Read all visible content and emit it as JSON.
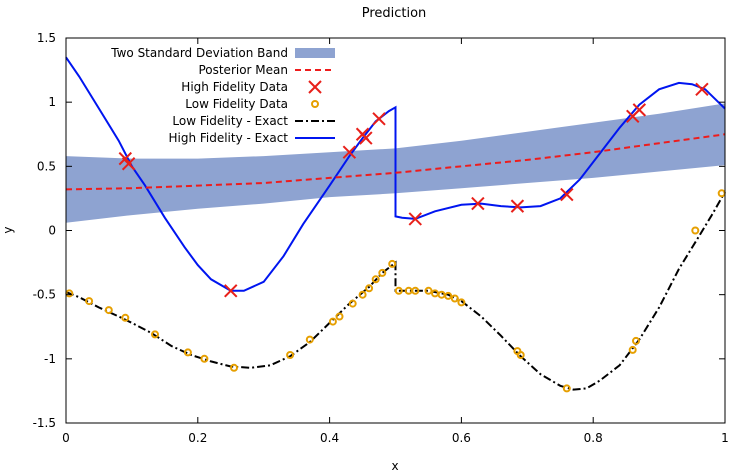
{
  "chart_data": {
    "type": "line",
    "title": "Prediction",
    "xlabel": "x",
    "ylabel": "y",
    "xlim": [
      0,
      1
    ],
    "ylim": [
      -1.5,
      1.5
    ],
    "x_ticks": [
      0,
      0.2,
      0.4,
      0.6,
      0.8,
      1
    ],
    "x_tick_labels": [
      "0",
      "0.2",
      "0.4",
      "0.6",
      "0.8",
      "1"
    ],
    "y_ticks": [
      -1.5,
      -1,
      -0.5,
      0,
      0.5,
      1,
      1.5
    ],
    "y_tick_labels": [
      "-1.5",
      "-1",
      "-0.5",
      "0",
      "0.5",
      "1",
      "1.5"
    ],
    "grid": false,
    "legend_position": "top-left",
    "legend": [
      "Two Standard Deviation Band",
      "Posterior Mean",
      "High Fidelity Data",
      "Low Fidelity Data",
      "Low Fidelity - Exact",
      "High Fidelity - Exact"
    ],
    "colors": {
      "band": "#8ea3d1",
      "mean": "#ee1c1c",
      "high_data": "#e8201a",
      "low_data": "#e69f00",
      "low_exact": "#000000",
      "high_exact": "#0015f0"
    },
    "band": {
      "x": [
        0,
        0.1,
        0.2,
        0.3,
        0.4,
        0.5,
        0.6,
        0.7,
        0.8,
        0.9,
        1
      ],
      "lower": [
        0.06,
        0.12,
        0.17,
        0.21,
        0.26,
        0.29,
        0.33,
        0.37,
        0.41,
        0.46,
        0.51
      ],
      "upper": [
        0.58,
        0.56,
        0.56,
        0.58,
        0.61,
        0.64,
        0.7,
        0.77,
        0.84,
        0.91,
        0.99
      ]
    },
    "posterior_mean": {
      "x": [
        0,
        0.1,
        0.2,
        0.3,
        0.4,
        0.5,
        0.6,
        0.7,
        0.8,
        0.9,
        1
      ],
      "y": [
        0.32,
        0.33,
        0.35,
        0.37,
        0.41,
        0.45,
        0.5,
        0.55,
        0.61,
        0.68,
        0.75
      ]
    },
    "high_fidelity_exact": {
      "x": [
        0,
        0.02,
        0.05,
        0.08,
        0.1,
        0.12,
        0.15,
        0.18,
        0.2,
        0.22,
        0.25,
        0.27,
        0.3,
        0.33,
        0.36,
        0.4,
        0.43,
        0.45,
        0.47,
        0.49,
        0.5,
        0.5,
        0.51,
        0.53,
        0.56,
        0.6,
        0.63,
        0.66,
        0.69,
        0.72,
        0.75,
        0.78,
        0.81,
        0.84,
        0.87,
        0.9,
        0.93,
        0.95,
        0.97,
        0.99,
        1
      ],
      "y": [
        1.35,
        1.2,
        0.95,
        0.7,
        0.5,
        0.35,
        0.1,
        -0.13,
        -0.27,
        -0.38,
        -0.47,
        -0.47,
        -0.4,
        -0.2,
        0.05,
        0.35,
        0.58,
        0.72,
        0.85,
        0.93,
        0.96,
        0.11,
        0.1,
        0.09,
        0.15,
        0.2,
        0.21,
        0.19,
        0.18,
        0.19,
        0.25,
        0.4,
        0.6,
        0.8,
        0.98,
        1.1,
        1.15,
        1.14,
        1.1,
        1.0,
        0.95
      ]
    },
    "low_fidelity_exact": {
      "x": [
        0,
        0.02,
        0.05,
        0.08,
        0.1,
        0.13,
        0.16,
        0.19,
        0.22,
        0.25,
        0.28,
        0.31,
        0.34,
        0.37,
        0.4,
        0.43,
        0.46,
        0.48,
        0.5,
        0.5,
        0.52,
        0.55,
        0.58,
        0.6,
        0.63,
        0.66,
        0.69,
        0.72,
        0.75,
        0.77,
        0.79,
        0.81,
        0.84,
        0.87,
        0.9,
        0.93,
        0.96,
        0.98,
        1
      ],
      "y": [
        -0.48,
        -0.52,
        -0.6,
        -0.67,
        -0.72,
        -0.8,
        -0.9,
        -0.97,
        -1.02,
        -1.06,
        -1.07,
        -1.05,
        -0.98,
        -0.87,
        -0.72,
        -0.57,
        -0.44,
        -0.33,
        -0.25,
        -0.47,
        -0.47,
        -0.47,
        -0.5,
        -0.55,
        -0.67,
        -0.82,
        -0.98,
        -1.12,
        -1.21,
        -1.24,
        -1.23,
        -1.17,
        -1.05,
        -0.85,
        -0.6,
        -0.3,
        -0.05,
        0.12,
        0.3
      ]
    },
    "high_fidelity_data": {
      "x": [
        0.09,
        0.095,
        0.25,
        0.43,
        0.45,
        0.455,
        0.475,
        0.53,
        0.625,
        0.685,
        0.76,
        0.86,
        0.87,
        0.965
      ],
      "y": [
        0.56,
        0.52,
        -0.47,
        0.61,
        0.75,
        0.72,
        0.87,
        0.09,
        0.21,
        0.19,
        0.28,
        0.89,
        0.94,
        1.1
      ]
    },
    "low_fidelity_data": {
      "x": [
        0.005,
        0.035,
        0.065,
        0.09,
        0.135,
        0.185,
        0.21,
        0.255,
        0.34,
        0.37,
        0.405,
        0.415,
        0.435,
        0.45,
        0.46,
        0.47,
        0.48,
        0.495,
        0.505,
        0.52,
        0.53,
        0.55,
        0.56,
        0.57,
        0.58,
        0.59,
        0.6,
        0.685,
        0.69,
        0.76,
        0.86,
        0.865,
        0.955,
        0.995
      ],
      "y": [
        -0.49,
        -0.55,
        -0.62,
        -0.68,
        -0.81,
        -0.95,
        -1.0,
        -1.07,
        -0.97,
        -0.85,
        -0.71,
        -0.67,
        -0.57,
        -0.5,
        -0.45,
        -0.38,
        -0.33,
        -0.26,
        -0.47,
        -0.47,
        -0.47,
        -0.47,
        -0.49,
        -0.5,
        -0.51,
        -0.53,
        -0.56,
        -0.94,
        -0.97,
        -1.23,
        -0.93,
        -0.86,
        0.0,
        0.29
      ]
    }
  }
}
